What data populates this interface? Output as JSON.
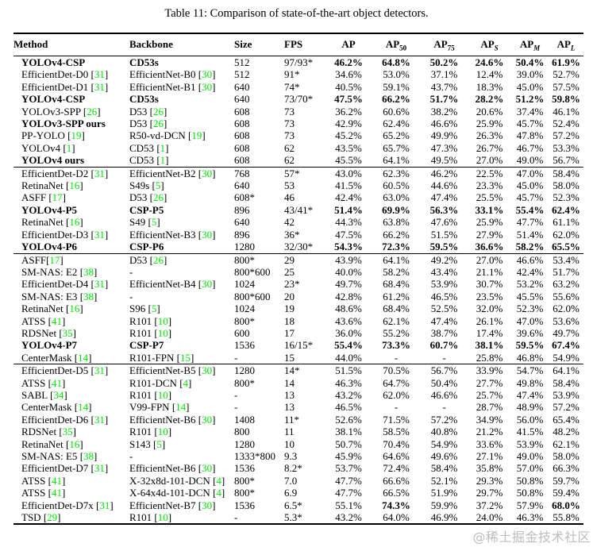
{
  "caption": "Table 11: Comparison of state-of-the-art object detectors.",
  "watermark": "@稀土掘金技术社区",
  "colors": {
    "citation_green": "#00e400",
    "watermark_gray": "#bcbcbc"
  },
  "columns": [
    {
      "key": "method",
      "label": "Method",
      "align": "left"
    },
    {
      "key": "backbone",
      "label": "Backbone",
      "align": "left"
    },
    {
      "key": "size",
      "label": "Size",
      "align": "left"
    },
    {
      "key": "fps",
      "label": "FPS",
      "align": "left"
    },
    {
      "key": "ap",
      "label": "AP",
      "align": "center"
    },
    {
      "key": "ap50",
      "label": "AP",
      "sub": "50",
      "align": "center"
    },
    {
      "key": "ap75",
      "label": "AP",
      "sub": "75",
      "align": "center"
    },
    {
      "key": "aps",
      "label": "AP",
      "sub": "S",
      "italic_sub": true,
      "align": "center"
    },
    {
      "key": "apm",
      "label": "AP",
      "sub": "M",
      "italic_sub": true,
      "align": "center"
    },
    {
      "key": "apl",
      "label": "AP",
      "sub": "L",
      "italic_sub": true,
      "align": "center"
    }
  ],
  "groups": [
    [
      {
        "m": "YOLOv4-CSP",
        "mb": true,
        "b": "CD53s",
        "bb": true,
        "size": "512",
        "fps": "97/93*",
        "v": [
          "46.2%",
          "64.8%",
          "50.2%",
          "24.6%",
          "50.4%",
          "61.9%"
        ],
        "vb": "all"
      },
      {
        "m": "EfficientDet-D0",
        "mref": "31",
        "b": "EfficientNet-B0",
        "bref": "30",
        "size": "512",
        "fps": "91*",
        "v": [
          "34.6%",
          "53.0%",
          "37.1%",
          "12.4%",
          "39.0%",
          "52.7%"
        ]
      },
      {
        "m": "EfficientDet-D1",
        "mref": "31",
        "b": "EfficientNet-B1",
        "bref": "30",
        "size": "640",
        "fps": "74*",
        "v": [
          "40.5%",
          "59.1%",
          "43.7%",
          "18.3%",
          "45.0%",
          "57.5%"
        ]
      },
      {
        "m": "YOLOv4-CSP",
        "mb": true,
        "b": "CD53s",
        "bb": true,
        "size": "640",
        "fps": "73/70*",
        "v": [
          "47.5%",
          "66.2%",
          "51.7%",
          "28.2%",
          "51.2%",
          "59.8%"
        ],
        "vb": "all"
      },
      {
        "m": "YOLOv3-SPP",
        "mref": "26",
        "b": "D53",
        "bref": "26",
        "size": "608",
        "fps": "73",
        "v": [
          "36.2%",
          "60.6%",
          "38.2%",
          "20.6%",
          "37.4%",
          "46.1%"
        ]
      },
      {
        "m": "YOLOv3-SPP ours",
        "mb": true,
        "b": "D53",
        "bref": "26",
        "size": "608",
        "fps": "73",
        "v": [
          "42.9%",
          "62.4%",
          "46.6%",
          "25.9%",
          "45.7%",
          "52.4%"
        ]
      },
      {
        "m": "PP-YOLO",
        "mref": "19",
        "b": "R50-vd-DCN",
        "bref": "19",
        "size": "608",
        "fps": "73",
        "v": [
          "45.2%",
          "65.2%",
          "49.9%",
          "26.3%",
          "47.8%",
          "57.2%"
        ]
      },
      {
        "m": "YOLOv4",
        "mref": "1",
        "b": "CD53",
        "bref": "1",
        "size": "608",
        "fps": "62",
        "v": [
          "43.5%",
          "65.7%",
          "47.3%",
          "26.7%",
          "46.7%",
          "53.3%"
        ]
      },
      {
        "m": "YOLOv4 ours",
        "mb": true,
        "b": "CD53",
        "bref": "1",
        "size": "608",
        "fps": "62",
        "v": [
          "45.5%",
          "64.1%",
          "49.5%",
          "27.0%",
          "49.0%",
          "56.7%"
        ]
      }
    ],
    [
      {
        "m": "EfficientDet-D2",
        "mref": "31",
        "b": "EfficientNet-B2",
        "bref": "30",
        "size": "768",
        "fps": "57*",
        "v": [
          "43.0%",
          "62.3%",
          "46.2%",
          "22.5%",
          "47.0%",
          "58.4%"
        ]
      },
      {
        "m": "RetinaNet",
        "mref": "16",
        "b": "S49s",
        "bref": "5",
        "size": "640",
        "fps": "53",
        "v": [
          "41.5%",
          "60.5%",
          "44.6%",
          "23.3%",
          "45.0%",
          "58.0%"
        ]
      },
      {
        "m": "ASFF",
        "mref": "17",
        "b": "D53",
        "bref": "26",
        "size": "608*",
        "fps": "46",
        "v": [
          "42.4%",
          "63.0%",
          "47.4%",
          "25.5%",
          "45.7%",
          "52.3%"
        ]
      },
      {
        "m": "YOLOv4-P5",
        "mb": true,
        "b": "CSP-P5",
        "bb": true,
        "size": "896",
        "fps": "43/41*",
        "v": [
          "51.4%",
          "69.9%",
          "56.3%",
          "33.1%",
          "55.4%",
          "62.4%"
        ],
        "vb": "all"
      },
      {
        "m": "RetinaNet",
        "mref": "16",
        "b": "S49",
        "bref": "5",
        "size": "640",
        "fps": "42",
        "v": [
          "44.3%",
          "63.8%",
          "47.6%",
          "25.9%",
          "47.7%",
          "61.1%"
        ]
      },
      {
        "m": "EfficientDet-D3",
        "mref": "31",
        "b": "EfficientNet-B3",
        "bref": "30",
        "size": "896",
        "fps": "36*",
        "v": [
          "47.5%",
          "66.2%",
          "51.5%",
          "27.9%",
          "51.4%",
          "62.0%"
        ]
      },
      {
        "m": "YOLOv4-P6",
        "mb": true,
        "b": "CSP-P6",
        "bb": true,
        "size": "1280",
        "fps": "32/30*",
        "v": [
          "54.3%",
          "72.3%",
          "59.5%",
          "36.6%",
          "58.2%",
          "65.5%"
        ],
        "vb": "all"
      }
    ],
    [
      {
        "m": "ASFF",
        "mref": "17",
        "mnospace": true,
        "b": "D53",
        "bref": "26",
        "size": "800*",
        "fps": "29",
        "v": [
          "43.9%",
          "64.1%",
          "49.2%",
          "27.0%",
          "46.6%",
          "53.4%"
        ]
      },
      {
        "m": "SM-NAS: E2",
        "mref": "38",
        "b": "-",
        "size": "800*600",
        "fps": "25",
        "v": [
          "40.0%",
          "58.2%",
          "43.4%",
          "21.1%",
          "42.4%",
          "51.7%"
        ]
      },
      {
        "m": "EfficientDet-D4",
        "mref": "31",
        "b": "EfficientNet-B4",
        "bref": "30",
        "size": "1024",
        "fps": "23*",
        "v": [
          "49.7%",
          "68.4%",
          "53.9%",
          "30.7%",
          "53.2%",
          "63.2%"
        ]
      },
      {
        "m": "SM-NAS: E3",
        "mref": "38",
        "b": "-",
        "size": "800*600",
        "fps": "20",
        "v": [
          "42.8%",
          "61.2%",
          "46.5%",
          "23.5%",
          "45.5%",
          "55.6%"
        ]
      },
      {
        "m": "RetinaNet",
        "mref": "16",
        "b": "S96",
        "bref": "5",
        "size": "1024",
        "fps": "19",
        "v": [
          "48.6%",
          "68.4%",
          "52.5%",
          "32.0%",
          "52.3%",
          "62.0%"
        ]
      },
      {
        "m": "ATSS",
        "mref": "41",
        "b": "R101",
        "bref": "10",
        "size": "800*",
        "fps": "18",
        "v": [
          "43.6%",
          "62.1%",
          "47.4%",
          "26.1%",
          "47.0%",
          "53.6%"
        ]
      },
      {
        "m": "RDSNet",
        "mref": "35",
        "b": "R101",
        "bref": "10",
        "size": "600",
        "fps": "17",
        "v": [
          "36.0%",
          "55.2%",
          "38.7%",
          "17.4%",
          "39.6%",
          "49.7%"
        ]
      },
      {
        "m": "YOLOv4-P7",
        "mb": true,
        "b": "CSP-P7",
        "bb": true,
        "size": "1536",
        "fps": "16/15*",
        "v": [
          "55.4%",
          "73.3%",
          "60.7%",
          "38.1%",
          "59.5%",
          "67.4%"
        ],
        "vb": "all"
      },
      {
        "m": "CenterMask",
        "mref": "14",
        "b": "R101-FPN",
        "bref": "15",
        "size": "-",
        "fps": "15",
        "v": [
          "44.0%",
          "-",
          "-",
          "25.8%",
          "46.8%",
          "54.9%"
        ]
      }
    ],
    [
      {
        "m": "EfficientDet-D5",
        "mref": "31",
        "b": "EfficientNet-B5",
        "bref": "30",
        "size": "1280",
        "fps": "14*",
        "v": [
          "51.5%",
          "70.5%",
          "56.7%",
          "33.9%",
          "54.7%",
          "64.1%"
        ]
      },
      {
        "m": "ATSS",
        "mref": "41",
        "b": "R101-DCN",
        "bref": "4",
        "size": "800*",
        "fps": "14",
        "v": [
          "46.3%",
          "64.7%",
          "50.4%",
          "27.7%",
          "49.8%",
          "58.4%"
        ]
      },
      {
        "m": "SABL",
        "mref": "34",
        "b": "R101",
        "bref": "10",
        "size": "-",
        "fps": "13",
        "v": [
          "43.2%",
          "62.0%",
          "46.6%",
          "25.7%",
          "47.4%",
          "53.9%"
        ]
      },
      {
        "m": "CenterMask",
        "mref": "14",
        "b": "V99-FPN",
        "bref": "14",
        "size": "-",
        "fps": "13",
        "v": [
          "46.5%",
          "-",
          "-",
          "28.7%",
          "48.9%",
          "57.2%"
        ]
      },
      {
        "m": "EfficientDet-D6",
        "mref": "31",
        "b": "EfficientNet-B6",
        "bref": "30",
        "size": "1408",
        "fps": "11*",
        "v": [
          "52.6%",
          "71.5%",
          "57.2%",
          "34.9%",
          "56.0%",
          "65.4%"
        ]
      },
      {
        "m": "RDSNet",
        "mref": "35",
        "b": "R101",
        "bref": "10",
        "size": "800",
        "fps": "11",
        "v": [
          "38.1%",
          "58.5%",
          "40.8%",
          "21.2%",
          "41.5%",
          "48.2%"
        ]
      },
      {
        "m": "RetinaNet",
        "mref": "16",
        "b": "S143",
        "bref": "5",
        "size": "1280",
        "fps": "10",
        "v": [
          "50.7%",
          "70.4%",
          "54.9%",
          "33.6%",
          "53.9%",
          "62.1%"
        ]
      },
      {
        "m": "SM-NAS: E5",
        "mref": "38",
        "b": "-",
        "size": "1333*800",
        "fps": "9.3",
        "v": [
          "45.9%",
          "64.6%",
          "49.6%",
          "27.1%",
          "49.0%",
          "58.0%"
        ]
      },
      {
        "m": "EfficientDet-D7",
        "mref": "31",
        "b": "EfficientNet-B6",
        "bref": "30",
        "size": "1536",
        "fps": "8.2*",
        "v": [
          "53.7%",
          "72.4%",
          "58.4%",
          "35.8%",
          "57.0%",
          "66.3%"
        ]
      },
      {
        "m": "ATSS",
        "mref": "41",
        "b": "X-32x8d-101-DCN",
        "bref": "4",
        "size": "800*",
        "fps": "7.0",
        "v": [
          "47.7%",
          "66.6%",
          "52.1%",
          "29.3%",
          "50.8%",
          "59.7%"
        ]
      },
      {
        "m": "ATSS",
        "mref": "41",
        "b": "X-64x4d-101-DCN",
        "bref": "4",
        "size": "800*",
        "fps": "6.9",
        "v": [
          "47.7%",
          "66.5%",
          "51.9%",
          "29.7%",
          "50.8%",
          "59.4%"
        ]
      },
      {
        "m": "EfficientDet-D7x",
        "mref": "31",
        "b": "EfficientNet-B7",
        "bref": "30",
        "size": "1536",
        "fps": "6.5*",
        "v": [
          "55.1%",
          "74.3%",
          "59.9%",
          "37.2%",
          "57.9%",
          "68.0%"
        ],
        "vb": [
          1,
          5
        ]
      },
      {
        "m": "TSD",
        "mref": "29",
        "b": "R101",
        "bref": "10",
        "size": "-",
        "fps": "5.3*",
        "v": [
          "43.2%",
          "64.0%",
          "46.9%",
          "24.0%",
          "46.3%",
          "55.8%"
        ]
      }
    ]
  ]
}
